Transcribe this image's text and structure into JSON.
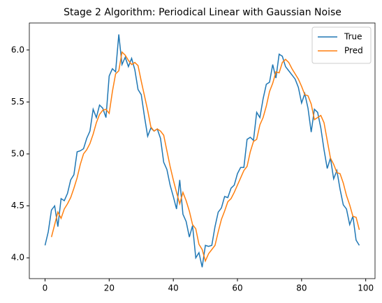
{
  "chart_data": {
    "type": "line",
    "title": "Stage 2 Algorithm: Periodical Linear with Gaussian Noise",
    "x": [
      0,
      1,
      2,
      3,
      4,
      5,
      6,
      7,
      8,
      9,
      10,
      11,
      12,
      13,
      14,
      15,
      16,
      17,
      18,
      19,
      20,
      21,
      22,
      23,
      24,
      25,
      26,
      27,
      28,
      29,
      30,
      31,
      32,
      33,
      34,
      35,
      36,
      37,
      38,
      39,
      40,
      41,
      42,
      43,
      44,
      45,
      46,
      47,
      48,
      49,
      50,
      51,
      52,
      53,
      54,
      55,
      56,
      57,
      58,
      59,
      60,
      61,
      62,
      63,
      64,
      65,
      66,
      67,
      68,
      69,
      70,
      71,
      72,
      73,
      74,
      75,
      76,
      77,
      78,
      79,
      80,
      81,
      82,
      83,
      84,
      85,
      86,
      87,
      88,
      89,
      90,
      91,
      92,
      93,
      94,
      95,
      96,
      97,
      98
    ],
    "series": [
      {
        "name": "True",
        "color": "#1f77b4",
        "values": [
          4.12,
          4.25,
          4.46,
          4.5,
          4.3,
          4.57,
          4.55,
          4.62,
          4.75,
          4.8,
          5.02,
          5.03,
          5.05,
          5.15,
          5.22,
          5.43,
          5.35,
          5.47,
          5.44,
          5.35,
          5.75,
          5.82,
          5.79,
          6.15,
          5.86,
          5.93,
          5.84,
          5.92,
          5.81,
          5.62,
          5.57,
          5.36,
          5.17,
          5.25,
          5.22,
          5.24,
          5.15,
          4.92,
          4.85,
          4.7,
          4.59,
          4.47,
          4.75,
          4.42,
          4.35,
          4.2,
          4.31,
          4.0,
          4.05,
          3.91,
          4.12,
          4.11,
          4.12,
          4.3,
          4.44,
          4.48,
          4.59,
          4.58,
          4.67,
          4.7,
          4.81,
          4.87,
          4.87,
          5.14,
          5.16,
          5.13,
          5.4,
          5.35,
          5.53,
          5.67,
          5.69,
          5.86,
          5.73,
          5.96,
          5.94,
          5.84,
          5.8,
          5.76,
          5.72,
          5.64,
          5.49,
          5.58,
          5.44,
          5.21,
          5.43,
          5.4,
          5.25,
          5.04,
          4.86,
          4.96,
          4.76,
          4.84,
          4.66,
          4.51,
          4.47,
          4.32,
          4.4,
          4.17,
          4.12
        ]
      },
      {
        "name": "Pred",
        "color": "#ff7f0e",
        "values": [
          null,
          null,
          4.2,
          4.32,
          4.44,
          4.38,
          4.47,
          4.52,
          4.58,
          4.67,
          4.77,
          4.9,
          5.0,
          5.04,
          5.1,
          5.19,
          5.3,
          5.38,
          5.42,
          5.43,
          5.39,
          5.6,
          5.77,
          5.8,
          5.98,
          5.95,
          5.9,
          5.86,
          5.88,
          5.85,
          5.7,
          5.56,
          5.42,
          5.26,
          5.22,
          5.24,
          5.22,
          5.18,
          5.03,
          4.88,
          4.75,
          4.63,
          4.52,
          4.63,
          4.55,
          4.45,
          4.32,
          4.28,
          4.13,
          4.08,
          3.97,
          4.04,
          4.08,
          4.12,
          4.25,
          4.37,
          4.45,
          4.54,
          4.57,
          4.63,
          4.7,
          4.77,
          4.84,
          4.88,
          5.02,
          5.12,
          5.14,
          5.28,
          5.35,
          5.46,
          5.6,
          5.68,
          5.79,
          5.78,
          5.88,
          5.91,
          5.88,
          5.82,
          5.77,
          5.72,
          5.65,
          5.57,
          5.56,
          5.48,
          5.33,
          5.35,
          5.37,
          5.3,
          5.13,
          4.96,
          4.9,
          4.82,
          4.81,
          4.72,
          4.6,
          4.51,
          4.4,
          4.39,
          4.27
        ]
      }
    ],
    "xlim": [
      -4.9,
      102.9
    ],
    "ylim": [
      3.8,
      6.26
    ],
    "xticks": [
      0,
      20,
      40,
      60,
      80,
      100
    ],
    "yticks": [
      {
        "value": 4,
        "label": "4.0"
      },
      {
        "value": 4.5,
        "label": "4.5"
      },
      {
        "value": 5,
        "label": "5.0"
      },
      {
        "value": 5.5,
        "label": "5.5"
      },
      {
        "value": 6,
        "label": "6.0"
      }
    ],
    "legend": "upper right"
  }
}
